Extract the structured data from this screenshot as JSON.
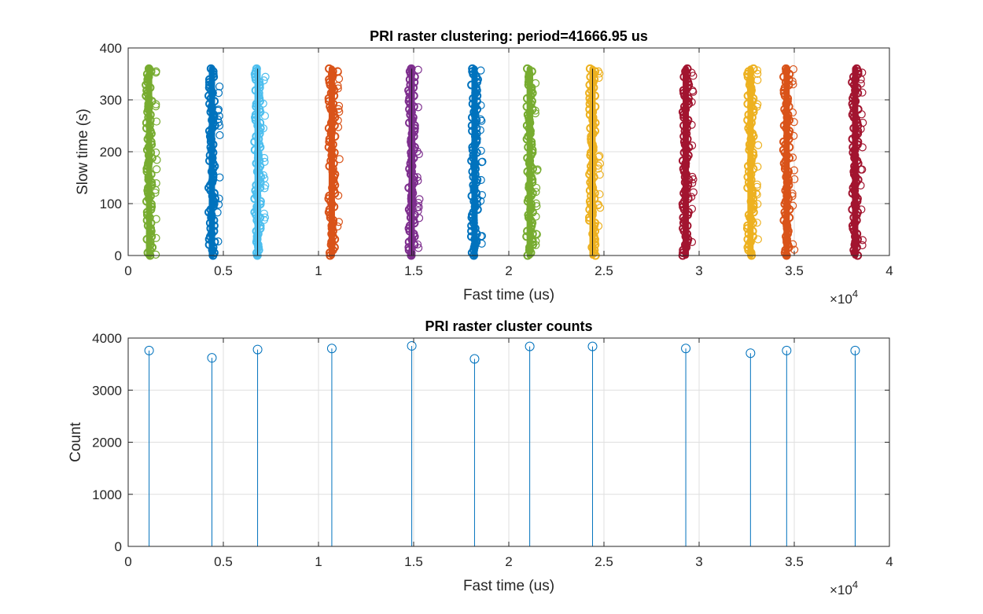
{
  "chart_data": [
    {
      "type": "scatter",
      "title": "PRI raster clustering: period=41666.95 us",
      "xlabel": "Fast time (us)",
      "ylabel": "Slow time (s)",
      "x_exponent_label": "×10",
      "x_exponent_power": "4",
      "xlim": [
        0,
        40000
      ],
      "ylim": [
        0,
        400
      ],
      "x_ticks": [
        0,
        5000,
        10000,
        15000,
        20000,
        25000,
        30000,
        35000,
        40000
      ],
      "x_tick_labels": [
        "0",
        "0.5",
        "1",
        "1.5",
        "2",
        "2.5",
        "3",
        "3.5",
        "4"
      ],
      "y_ticks": [
        0,
        100,
        200,
        300,
        400
      ],
      "y_tick_labels": [
        "0",
        "100",
        "200",
        "300",
        "400"
      ],
      "grid": true,
      "marker": "circle",
      "slow_time_range": [
        0,
        360
      ],
      "series": [
        {
          "x": 1100,
          "color": "#77AC30"
        },
        {
          "x": 4400,
          "color": "#0072BD"
        },
        {
          "x": 6800,
          "color": "#4DBEEE"
        },
        {
          "x": 10700,
          "color": "#D95319"
        },
        {
          "x": 14900,
          "color": "#7E2F8E"
        },
        {
          "x": 18200,
          "color": "#0072BD"
        },
        {
          "x": 21100,
          "color": "#77AC30"
        },
        {
          "x": 24400,
          "color": "#EDB120"
        },
        {
          "x": 29300,
          "color": "#A2142F"
        },
        {
          "x": 32700,
          "color": "#EDB120"
        },
        {
          "x": 34600,
          "color": "#D95319"
        },
        {
          "x": 38200,
          "color": "#A2142F"
        }
      ]
    },
    {
      "type": "stem",
      "title": "PRI raster cluster counts",
      "xlabel": "Fast time (us)",
      "ylabel": "Count",
      "x_exponent_label": "×10",
      "x_exponent_power": "4",
      "xlim": [
        0,
        40000
      ],
      "ylim": [
        0,
        4000
      ],
      "x_ticks": [
        0,
        5000,
        10000,
        15000,
        20000,
        25000,
        30000,
        35000,
        40000
      ],
      "x_tick_labels": [
        "0",
        "0.5",
        "1",
        "1.5",
        "2",
        "2.5",
        "3",
        "3.5",
        "4"
      ],
      "y_ticks": [
        0,
        1000,
        2000,
        3000,
        4000
      ],
      "y_tick_labels": [
        "0",
        "1000",
        "2000",
        "3000",
        "4000"
      ],
      "grid": true,
      "color": "#0072BD",
      "x": [
        1100,
        4400,
        6800,
        10700,
        14900,
        18200,
        21100,
        24400,
        29300,
        32700,
        34600,
        38200
      ],
      "values": [
        3760,
        3620,
        3780,
        3800,
        3850,
        3600,
        3840,
        3840,
        3800,
        3710,
        3760,
        3760
      ]
    }
  ]
}
